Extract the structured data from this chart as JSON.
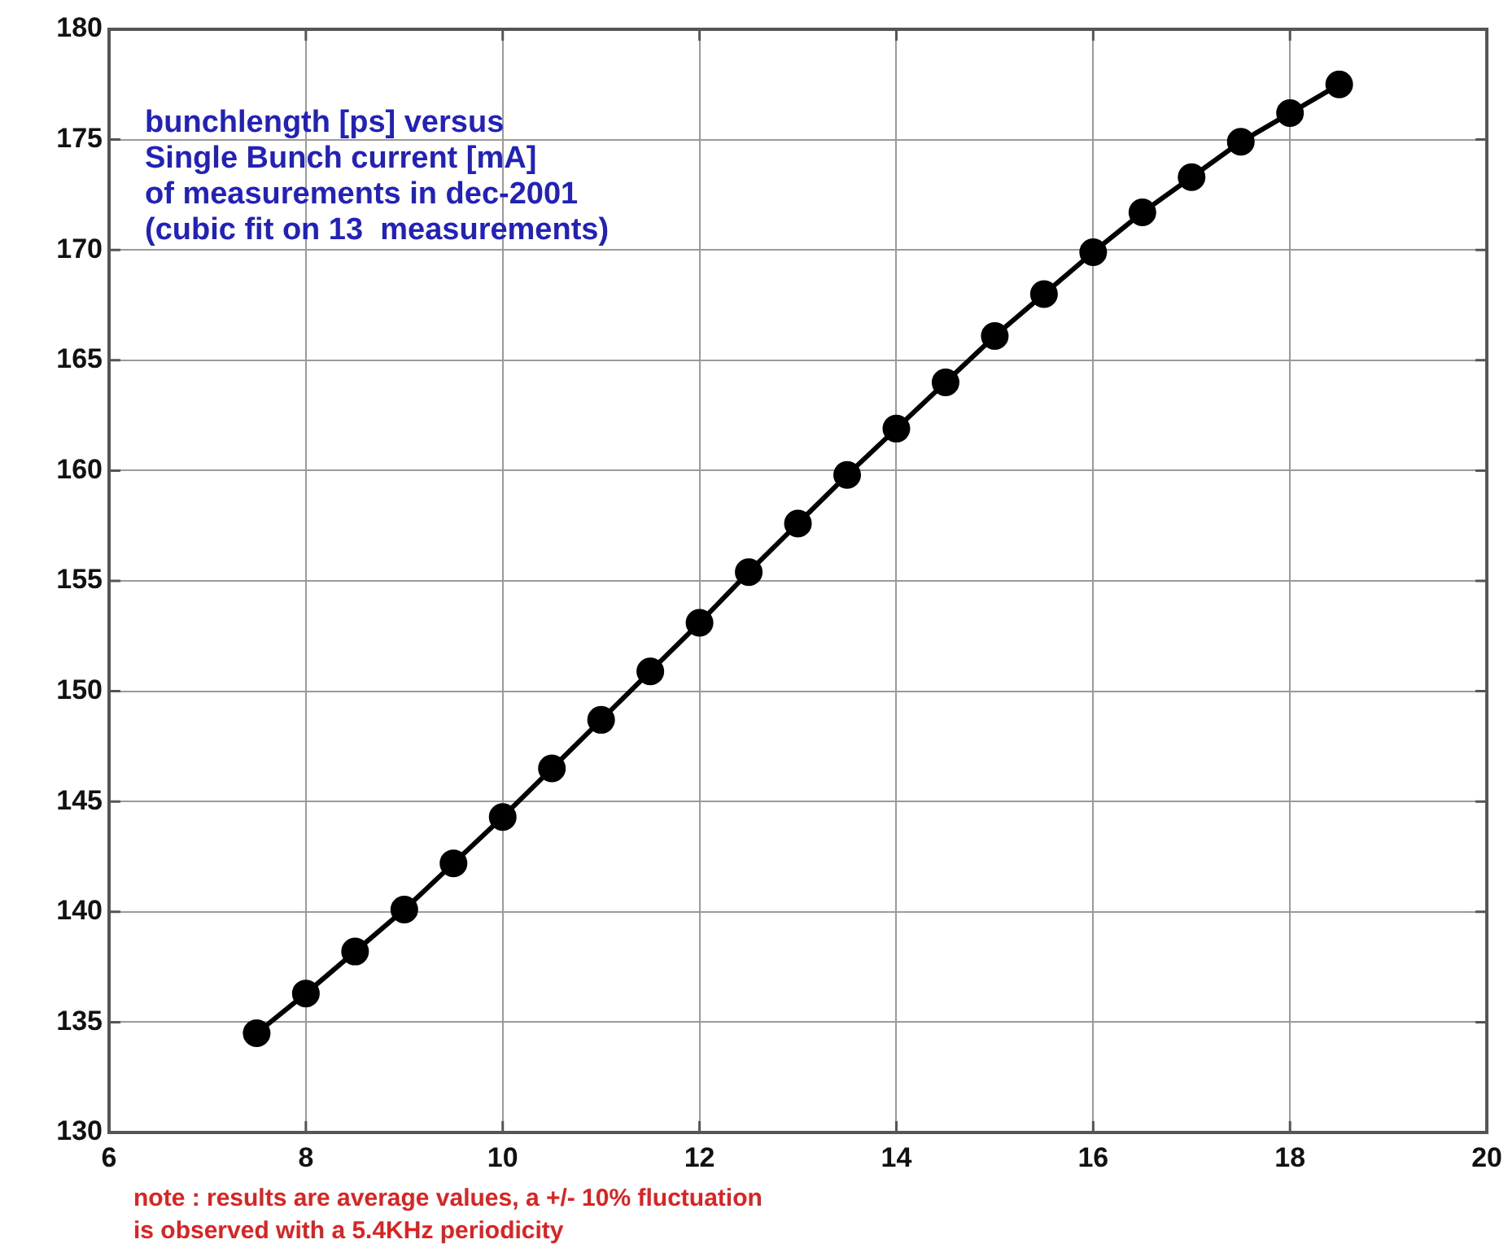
{
  "chart_data": {
    "type": "line",
    "x": [
      7.5,
      8,
      8.5,
      9,
      9.5,
      10,
      10.5,
      11,
      11.5,
      12,
      12.5,
      13,
      13.5,
      14,
      14.5,
      15,
      15.5,
      16,
      16.5,
      17,
      17.5,
      18,
      18.5
    ],
    "series": [
      {
        "color": "#000000",
        "values": [
          134.5,
          136.3,
          138.2,
          140.1,
          142.2,
          144.3,
          146.5,
          148.7,
          150.9,
          153.1,
          155.4,
          157.6,
          159.8,
          161.9,
          164.0,
          166.1,
          168.0,
          169.9,
          171.7,
          173.3,
          174.9,
          176.2,
          177.5
        ]
      }
    ],
    "xlim": [
      6,
      20
    ],
    "xticks": [
      6,
      8,
      10,
      12,
      14,
      16,
      18,
      20
    ],
    "ylim": [
      130,
      180
    ],
    "yticks": [
      130,
      135,
      140,
      145,
      150,
      155,
      160,
      165,
      170,
      175,
      180
    ],
    "grid": true,
    "marker": "circle",
    "line_style": "solid",
    "legend": false,
    "annotations": [
      "bunchlength [ps] versus\nSingle Bunch current [mA]\nof measurements in dec-2001\n(cubic fit on 13  measurements)",
      "note : results are average values, a +/- 10% fluctuation\nis observed with a 5.4KHz periodicity"
    ]
  }
}
